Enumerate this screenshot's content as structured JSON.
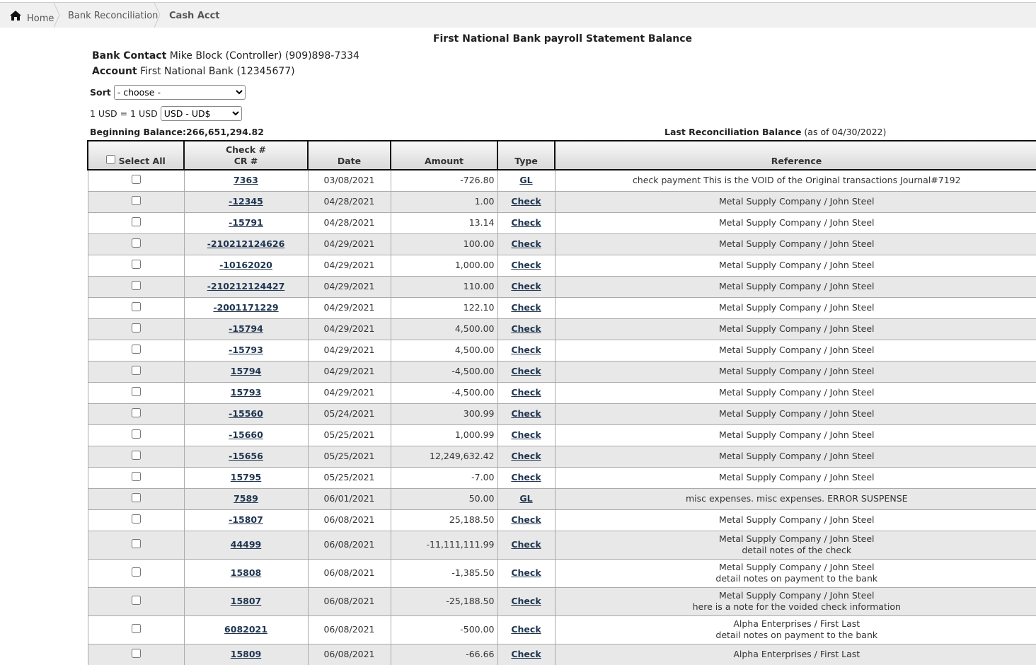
{
  "breadcrumb": [
    "Home",
    "Bank Reconciliation",
    "Cash Acct"
  ],
  "title": "First National Bank payroll Statement Balance",
  "bank_contact": {
    "label": "Bank Contact",
    "value": "Mike Block (Controller) (909)898-7334"
  },
  "account": {
    "label": "Account",
    "value": "First National Bank (12345677)"
  },
  "sort": {
    "label": "Sort",
    "selected": "- choose -"
  },
  "currency": {
    "label": "1 USD = 1 USD",
    "selected": "USD - UD$"
  },
  "beginning_balance": {
    "label": "Beginning Balance:",
    "value": "266,651,294.82"
  },
  "last_reconciliation": {
    "label": "Last Reconciliation Balance",
    "note": "(as of 04/30/2022)"
  },
  "table": {
    "headers": {
      "select_all": "Select All",
      "check": "Check #",
      "cr": "CR #",
      "date": "Date",
      "amount": "Amount",
      "type": "Type",
      "reference": "Reference"
    },
    "rows": [
      {
        "check": "7363",
        "date": "03/08/2021",
        "amount": "-726.80",
        "type": "GL",
        "reference": [
          "check payment This is the VOID of the Original transactions Journal#7192"
        ]
      },
      {
        "check": "-12345",
        "date": "04/28/2021",
        "amount": "1.00",
        "type": "Check",
        "reference": [
          "Metal Supply Company / John Steel"
        ]
      },
      {
        "check": "-15791",
        "date": "04/28/2021",
        "amount": "13.14",
        "type": "Check",
        "reference": [
          "Metal Supply Company / John Steel"
        ]
      },
      {
        "check": "-210212124626",
        "date": "04/29/2021",
        "amount": "100.00",
        "type": "Check",
        "reference": [
          "Metal Supply Company / John Steel"
        ]
      },
      {
        "check": "-10162020",
        "date": "04/29/2021",
        "amount": "1,000.00",
        "type": "Check",
        "reference": [
          "Metal Supply Company / John Steel"
        ]
      },
      {
        "check": "-210212124427",
        "date": "04/29/2021",
        "amount": "110.00",
        "type": "Check",
        "reference": [
          "Metal Supply Company / John Steel"
        ]
      },
      {
        "check": "-2001171229",
        "date": "04/29/2021",
        "amount": "122.10",
        "type": "Check",
        "reference": [
          "Metal Supply Company / John Steel"
        ]
      },
      {
        "check": "-15794",
        "date": "04/29/2021",
        "amount": "4,500.00",
        "type": "Check",
        "reference": [
          "Metal Supply Company / John Steel"
        ]
      },
      {
        "check": "-15793",
        "date": "04/29/2021",
        "amount": "4,500.00",
        "type": "Check",
        "reference": [
          "Metal Supply Company / John Steel"
        ]
      },
      {
        "check": "15794",
        "date": "04/29/2021",
        "amount": "-4,500.00",
        "type": "Check",
        "reference": [
          "Metal Supply Company / John Steel"
        ]
      },
      {
        "check": "15793",
        "date": "04/29/2021",
        "amount": "-4,500.00",
        "type": "Check",
        "reference": [
          "Metal Supply Company / John Steel"
        ]
      },
      {
        "check": "-15560",
        "date": "05/24/2021",
        "amount": "300.99",
        "type": "Check",
        "reference": [
          "Metal Supply Company / John Steel"
        ]
      },
      {
        "check": "-15660",
        "date": "05/25/2021",
        "amount": "1,000.99",
        "type": "Check",
        "reference": [
          "Metal Supply Company / John Steel"
        ]
      },
      {
        "check": "-15656",
        "date": "05/25/2021",
        "amount": "12,249,632.42",
        "type": "Check",
        "reference": [
          "Metal Supply Company / John Steel"
        ]
      },
      {
        "check": "15795",
        "date": "05/25/2021",
        "amount": "-7.00",
        "type": "Check",
        "reference": [
          "Metal Supply Company / John Steel"
        ]
      },
      {
        "check": "7589",
        "date": "06/01/2021",
        "amount": "50.00",
        "type": "GL",
        "reference": [
          "misc expenses. misc expenses. ERROR SUSPENSE"
        ]
      },
      {
        "check": "-15807",
        "date": "06/08/2021",
        "amount": "25,188.50",
        "type": "Check",
        "reference": [
          "Metal Supply Company / John Steel"
        ]
      },
      {
        "check": "44499",
        "date": "06/08/2021",
        "amount": "-11,111,111.99",
        "type": "Check",
        "reference": [
          "Metal Supply Company / John Steel",
          "detail notes of the check"
        ]
      },
      {
        "check": "15808",
        "date": "06/08/2021",
        "amount": "-1,385.50",
        "type": "Check",
        "reference": [
          "Metal Supply Company / John Steel",
          "detail notes on payment to the bank"
        ]
      },
      {
        "check": "15807",
        "date": "06/08/2021",
        "amount": "-25,188.50",
        "type": "Check",
        "reference": [
          "Metal Supply Company / John Steel",
          "here is a note for the voided check information"
        ]
      },
      {
        "check": "6082021",
        "date": "06/08/2021",
        "amount": "-500.00",
        "type": "Check",
        "reference": [
          "Alpha Enterprises / First Last",
          "detail notes on payment to the bank"
        ]
      },
      {
        "check": "15809",
        "date": "06/08/2021",
        "amount": "-66.66",
        "type": "Check",
        "reference": [
          "Alpha Enterprises / First Last"
        ]
      }
    ]
  }
}
